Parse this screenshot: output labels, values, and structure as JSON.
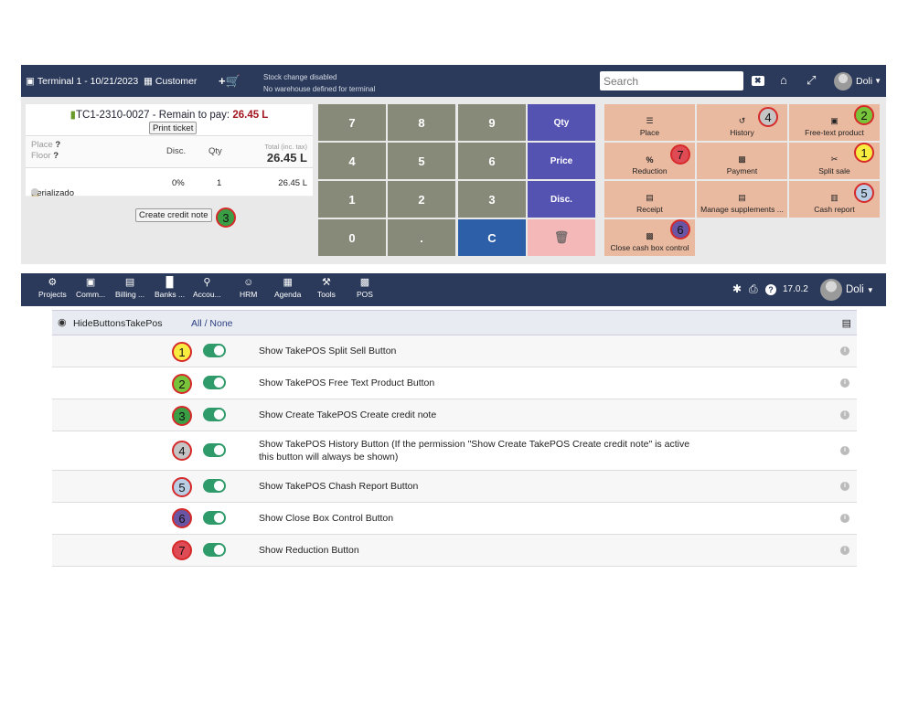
{
  "pos": {
    "terminal": "Terminal 1 - 10/21/2023",
    "customer": "Customer",
    "stock_line1": "Stock change disabled",
    "stock_line2": "No warehouse defined for terminal",
    "search_placeholder": "Search",
    "user": "Doli",
    "ticket": {
      "ref": "TC1-2310-0027",
      "remain_label": " - Remain to pay: ",
      "amount": "26.45 L",
      "print_label": "Print ticket",
      "place_label": "Place",
      "floor_label": "Floor",
      "q": "?",
      "disc_header": "Disc.",
      "qty_header": "Qty",
      "total_label": "Total (inc. tax)",
      "total": "26.45 L",
      "line_product": "Serializado",
      "line_disc": "0%",
      "line_qty": "1",
      "line_total": "26.45 L",
      "credit_note_label": "Create credit note"
    },
    "keypad": {
      "k7": "7",
      "k8": "8",
      "k9": "9",
      "k4": "4",
      "k5": "5",
      "k6": "6",
      "k1": "1",
      "k2": "2",
      "k3": "3",
      "k0": "0",
      "kdot": ".",
      "kc": "C",
      "qty": "Qty",
      "price": "Price",
      "disc": "Disc."
    },
    "tiles": {
      "place": "Place",
      "history": "History",
      "free_text": "Free-text product",
      "reduction": "Reduction",
      "payment": "Payment",
      "split": "Split sale",
      "receipt": "Receipt",
      "supplements": "Manage supplements ...",
      "cash_report": "Cash report",
      "close_box": "Close cash box control"
    }
  },
  "badges": {
    "b1": "1",
    "b2": "2",
    "b3": "3",
    "b4": "4",
    "b5": "5",
    "b6": "6",
    "b7": "7"
  },
  "dolibarr": {
    "menu": [
      "Projects",
      "Comm...",
      "Billing ...",
      "Banks ...",
      "Accou...",
      "HRM",
      "Agenda",
      "Tools",
      "POS"
    ],
    "version": "17.0.2",
    "user": "Doli"
  },
  "hide_buttons": {
    "title": "HideButtonsTakePos",
    "all_none": "All / None",
    "rows": [
      {
        "badge": "1",
        "label": "Show TakePOS Split Sell Button"
      },
      {
        "badge": "2",
        "label": "Show TakePOS Free Text Product Button"
      },
      {
        "badge": "3",
        "label": "Show Create TakePOS Create credit note"
      },
      {
        "badge": "4",
        "label": "Show TakePOS History Button (If the permission \"Show Create TakePOS Create credit note\" is active this button will always be shown)"
      },
      {
        "badge": "5",
        "label": "Show TakePOS Chash Report Button"
      },
      {
        "badge": "6",
        "label": "Show Close Box Control Button"
      },
      {
        "badge": "7",
        "label": "Show Reduction Button"
      }
    ]
  },
  "colors": {
    "topbar": "#2b3a5a",
    "tile": "#e9b9a0",
    "key_num": "#878a79",
    "key_op": "#5553b2",
    "key_clear": "#2d5fa8",
    "toggle_on": "#2f9a6a",
    "badge_border": "#d62a2a"
  }
}
